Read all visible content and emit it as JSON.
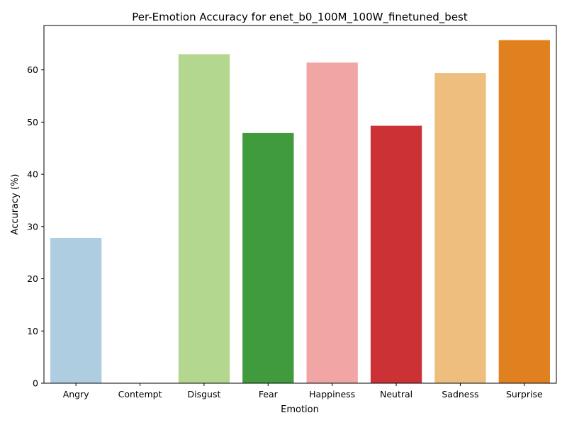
{
  "chart_data": {
    "type": "bar",
    "title": "Per-Emotion Accuracy for enet_b0_100M_100W_finetuned_best",
    "xlabel": "Emotion",
    "ylabel": "Accuracy (%)",
    "categories": [
      "Angry",
      "Contempt",
      "Disgust",
      "Fear",
      "Happiness",
      "Neutral",
      "Sadness",
      "Surprise"
    ],
    "values": [
      27.8,
      0.0,
      63.0,
      47.9,
      61.4,
      49.3,
      59.4,
      65.7
    ],
    "colors": [
      "#aecde1",
      "#1f78b4",
      "#b4d78f",
      "#3f9b3b",
      "#f1a5a4",
      "#cc3135",
      "#edbe7e",
      "#e1801f"
    ],
    "ylim": [
      0,
      68.5
    ],
    "yticks": [
      0,
      10,
      20,
      30,
      40,
      50,
      60
    ],
    "grid": false,
    "legend": false
  }
}
